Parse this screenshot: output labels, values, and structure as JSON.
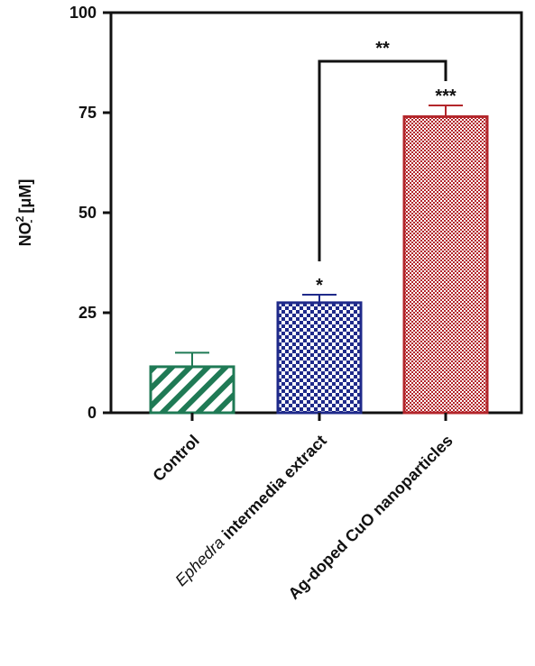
{
  "chart_data": {
    "type": "bar",
    "title": "",
    "xlabel": "",
    "ylabel": {
      "prefix": "NO",
      "sub": "-",
      "sup": "2",
      "suffix": " [μM]"
    },
    "ylim": [
      0,
      100
    ],
    "yticks": [
      0,
      25,
      50,
      75,
      100
    ],
    "categories": [
      {
        "italic": "",
        "text": "Control"
      },
      {
        "italic": "Ephedra",
        "text": " intermedia extract"
      },
      {
        "italic": "",
        "text": "Ag-doped CuO nanoparticles"
      }
    ],
    "values": [
      11.5,
      27.5,
      74
    ],
    "errors": [
      3.5,
      2.0,
      2.8
    ],
    "bar_styles": [
      {
        "pattern": "diagonal-stripes",
        "color": "#1f7a55"
      },
      {
        "pattern": "checkerboard",
        "color": "#1f2a8a"
      },
      {
        "pattern": "fine-checkerboard",
        "color": "#b3262b"
      }
    ],
    "significance": [
      {
        "bar": 1,
        "label": "*"
      },
      {
        "bar": 2,
        "label": "***"
      }
    ],
    "comparisons": [
      {
        "from": 1,
        "to": 2,
        "label": "**"
      }
    ],
    "grid": false,
    "legend": "none"
  }
}
